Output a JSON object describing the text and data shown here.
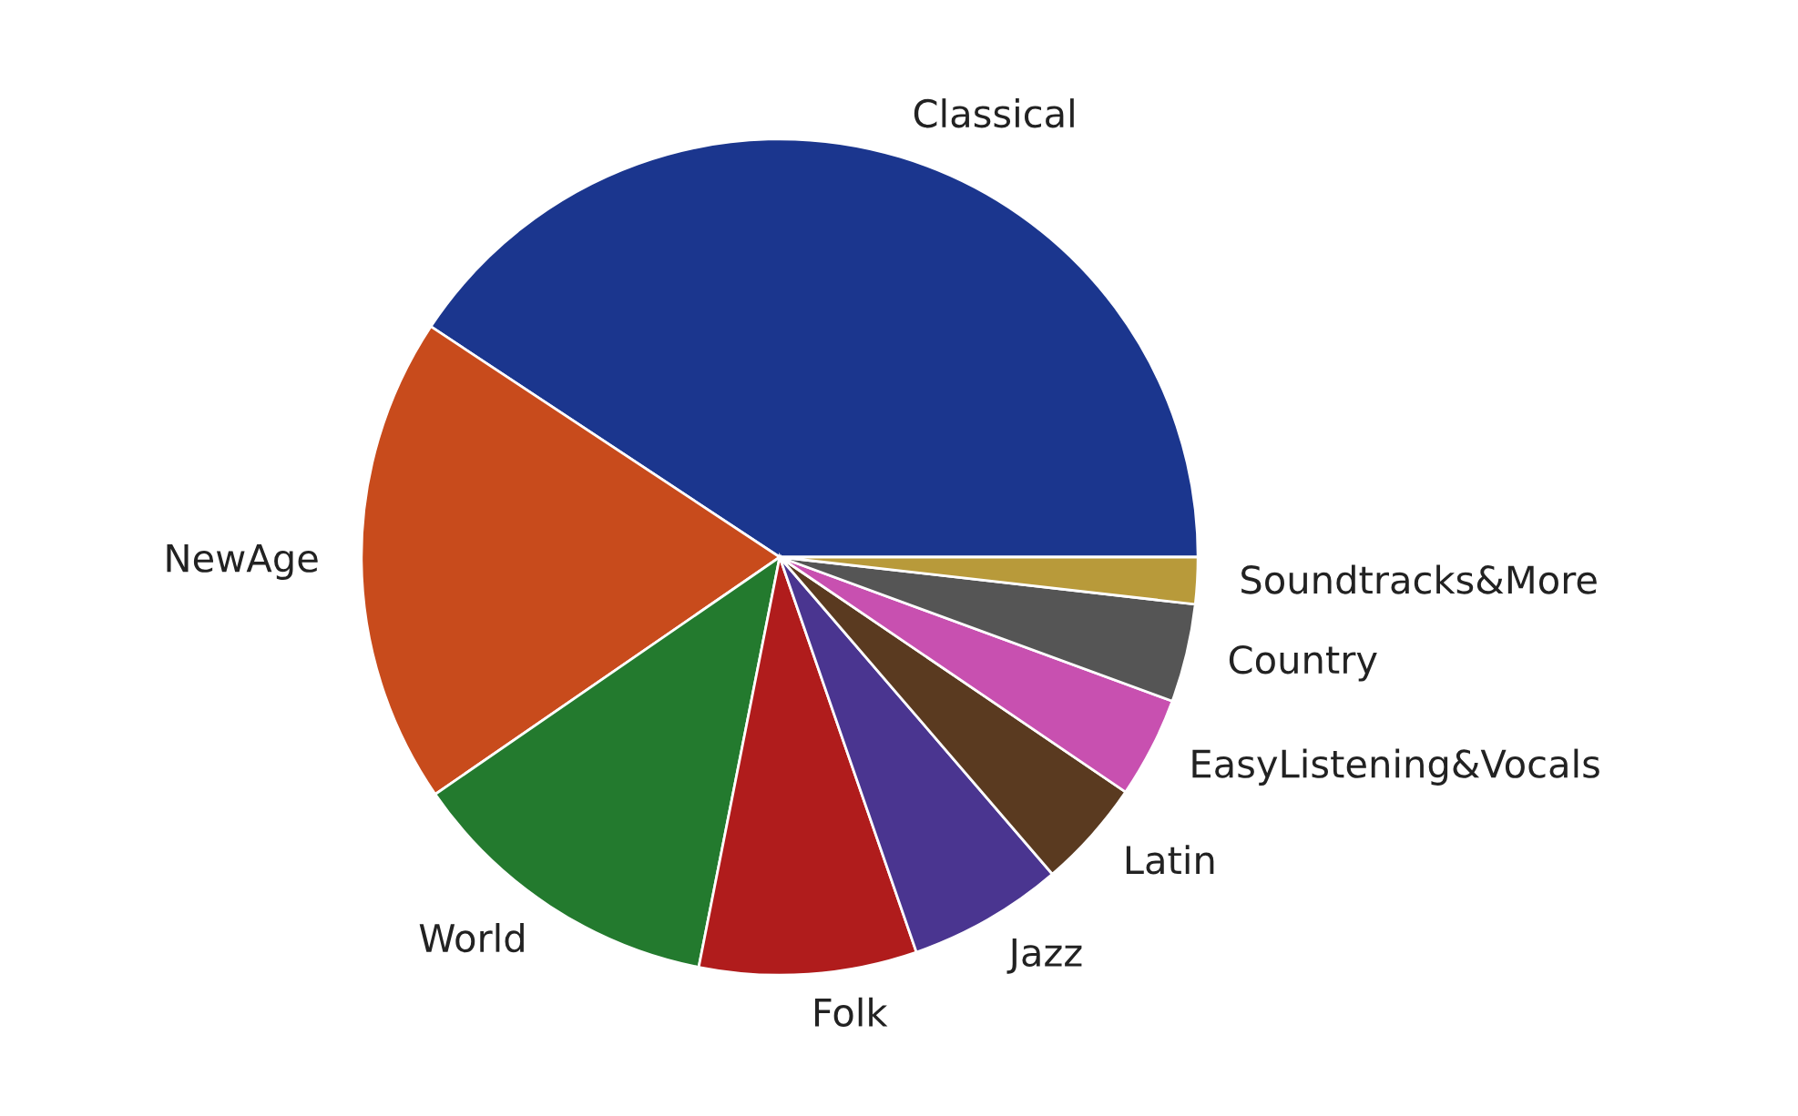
{
  "chart_data": {
    "type": "pie",
    "categories": [
      "Classical",
      "NewAge",
      "World",
      "Folk",
      "Jazz",
      "Latin",
      "EasyListening&Vocals",
      "Country",
      "Soundtracks&More"
    ],
    "values": [
      40.7,
      18.9,
      12.3,
      8.4,
      6.0,
      4.2,
      3.9,
      3.8,
      1.8
    ],
    "colors": [
      "#1b368e",
      "#c84b1c",
      "#237a2e",
      "#b01c1c",
      "#4a3590",
      "#5a3a20",
      "#c850b0",
      "#555555",
      "#b89a3a"
    ]
  }
}
